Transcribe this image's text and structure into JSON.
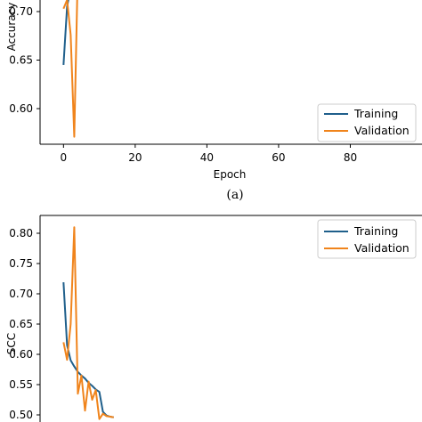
{
  "chart_data": [
    {
      "type": "line",
      "caption": "(a)",
      "xlabel": "Epoch",
      "ylabel": "Accuracy",
      "xticks": [
        0,
        20,
        40,
        60,
        80
      ],
      "yticks": [
        0.6,
        0.65,
        0.7
      ],
      "xlim": [
        -4.8,
        100
      ],
      "legend": "lower right",
      "series": [
        {
          "name": "Training",
          "color": "#1f5f8b",
          "x": [
            0,
            1,
            2,
            3
          ],
          "y": [
            0.645,
            0.705,
            0.725,
            0.745
          ]
        },
        {
          "name": "Validation",
          "color": "#f0841c",
          "x": [
            0,
            1,
            2,
            3,
            4
          ],
          "y": [
            0.703,
            0.712,
            0.676,
            0.571,
            0.745
          ]
        }
      ]
    },
    {
      "type": "line",
      "xlabel": "",
      "ylabel": "SCC",
      "yticks": [
        0.5,
        0.55,
        0.6,
        0.65,
        0.7,
        0.75,
        0.8
      ],
      "xlim": [
        -4.8,
        100
      ],
      "legend": "upper right",
      "series": [
        {
          "name": "Training",
          "color": "#1f5f8b",
          "x": [
            0,
            1,
            2,
            3,
            4,
            5,
            6,
            7,
            8,
            9,
            10,
            11,
            12,
            13,
            14
          ],
          "y": [
            0.719,
            0.615,
            0.59,
            0.58,
            0.571,
            0.565,
            0.56,
            0.553,
            0.548,
            0.542,
            0.538,
            0.505,
            0.499,
            0.497,
            0.496
          ]
        },
        {
          "name": "Validation",
          "color": "#f0841c",
          "x": [
            0,
            1,
            2,
            3,
            4,
            5,
            6,
            7,
            8,
            9,
            10,
            11,
            12,
            13,
            14
          ],
          "y": [
            0.62,
            0.591,
            0.65,
            0.81,
            0.535,
            0.565,
            0.507,
            0.555,
            0.525,
            0.541,
            0.493,
            0.502,
            0.498,
            0.497,
            0.496
          ]
        }
      ]
    }
  ]
}
